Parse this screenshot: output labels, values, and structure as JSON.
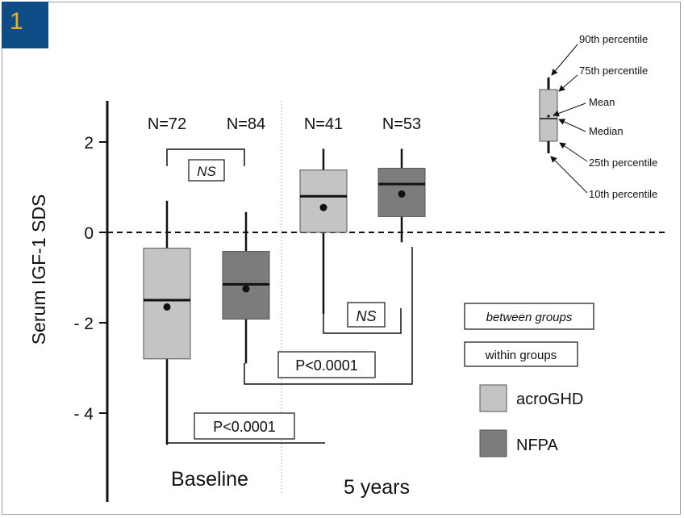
{
  "figure_number": "1",
  "chart_data": {
    "type": "box",
    "ylabel": "Serum IGF-1 SDS",
    "yticks": [
      {
        "value": 2,
        "label": "2"
      },
      {
        "value": 0,
        "label": "0"
      },
      {
        "value": -2,
        "label": "- 2"
      },
      {
        "value": -4,
        "label": "- 4"
      }
    ],
    "reference_line": 0,
    "groups": [
      {
        "name": "Baseline",
        "boxes": [
          {
            "series": "acroGHD",
            "n_label": "N=72",
            "p10": -4.7,
            "p25": -2.8,
            "median": -1.5,
            "p75": -0.35,
            "p90": 0.7,
            "mean": -1.65
          },
          {
            "series": "NFPA",
            "n_label": "N=84",
            "p10": -2.9,
            "p25": -1.92,
            "median": -1.15,
            "p75": -0.42,
            "p90": 0.45,
            "mean": -1.25
          }
        ]
      },
      {
        "name": "5 years",
        "boxes": [
          {
            "series": "acroGHD",
            "n_label": "N=41",
            "p10": -1.8,
            "p25": 0.0,
            "median": 0.8,
            "p75": 1.38,
            "p90": 1.85,
            "mean": 0.55
          },
          {
            "series": "NFPA",
            "n_label": "N=53",
            "p10": -0.22,
            "p25": 0.35,
            "median": 1.07,
            "p75": 1.42,
            "p90": 1.85,
            "mean": 0.85
          }
        ]
      }
    ],
    "comparisons": [
      {
        "label": "NS",
        "kind": "between groups"
      },
      {
        "label": "NS",
        "kind": "between groups"
      },
      {
        "label": "P<0.0001",
        "kind": "within groups"
      },
      {
        "label": "P<0.0001",
        "kind": "within groups"
      }
    ],
    "legend": {
      "between": "between groups",
      "within": "within groups",
      "series": [
        {
          "name": "acroGHD",
          "color": "#c4c4c4"
        },
        {
          "name": "NFPA",
          "color": "#7c7c7c"
        }
      ]
    },
    "key": {
      "p90": "90th percentile",
      "p75": "75th percentile",
      "mean": "Mean",
      "median": "Median",
      "p25": "25th percentile",
      "p10": "10th percentile"
    }
  }
}
